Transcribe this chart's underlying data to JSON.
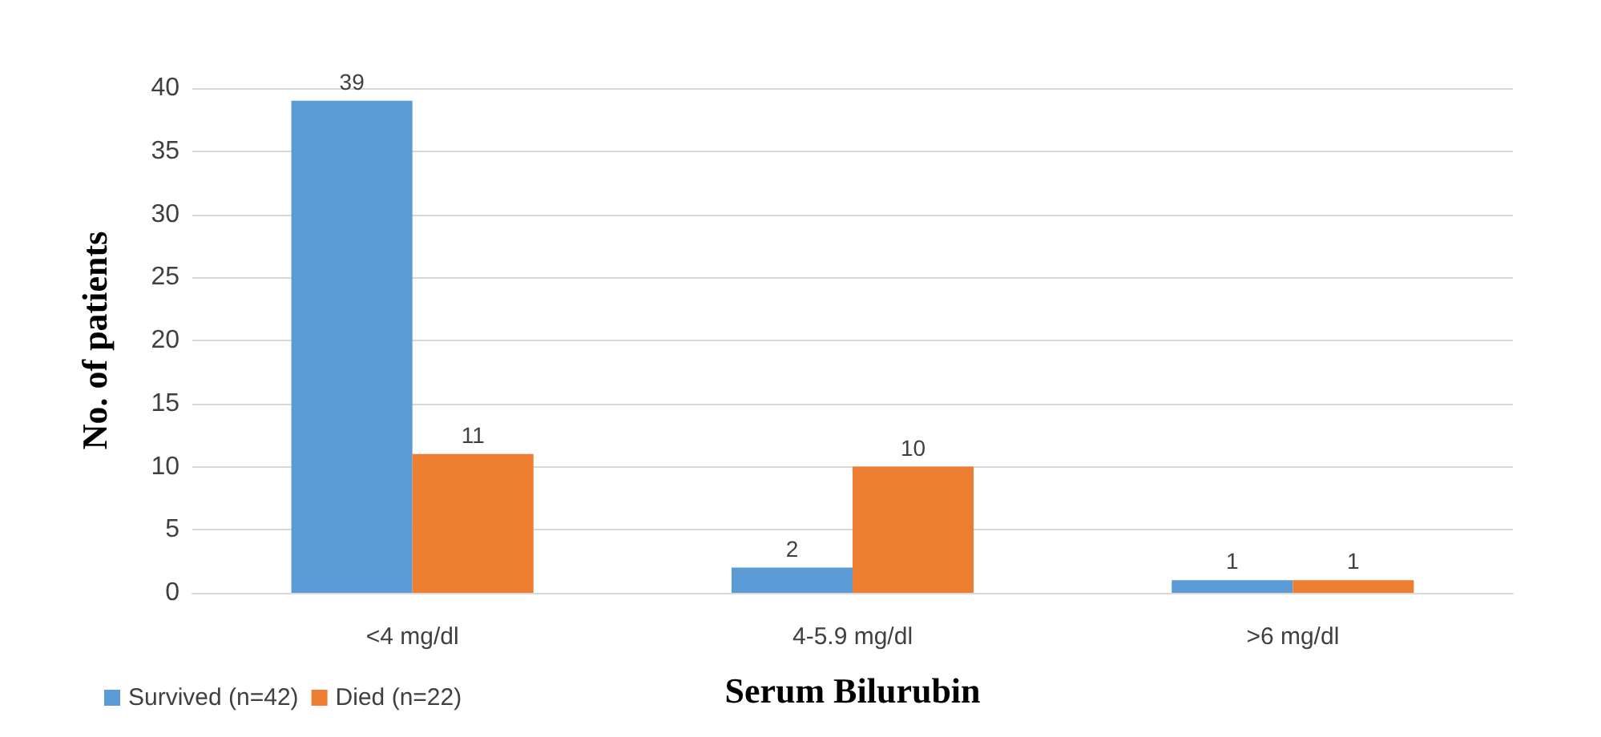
{
  "chart_data": {
    "type": "bar",
    "xlabel": "Serum Bilurubin",
    "ylabel": "No. of patients",
    "categories": [
      "<4 mg/dl",
      "4-5.9 mg/dl",
      ">6 mg/dl"
    ],
    "series": [
      {
        "name": "Survived (n=42)",
        "color": "#5b9bd5",
        "values": [
          39,
          2,
          1
        ]
      },
      {
        "name": "Died (n=22)",
        "color": "#ed7d31",
        "values": [
          11,
          10,
          1
        ]
      }
    ],
    "ylim": [
      0,
      40
    ],
    "yticks": [
      0,
      5,
      10,
      15,
      20,
      25,
      30,
      35,
      40
    ],
    "grid": "y",
    "data_labels": true,
    "legend": "bottom left"
  }
}
